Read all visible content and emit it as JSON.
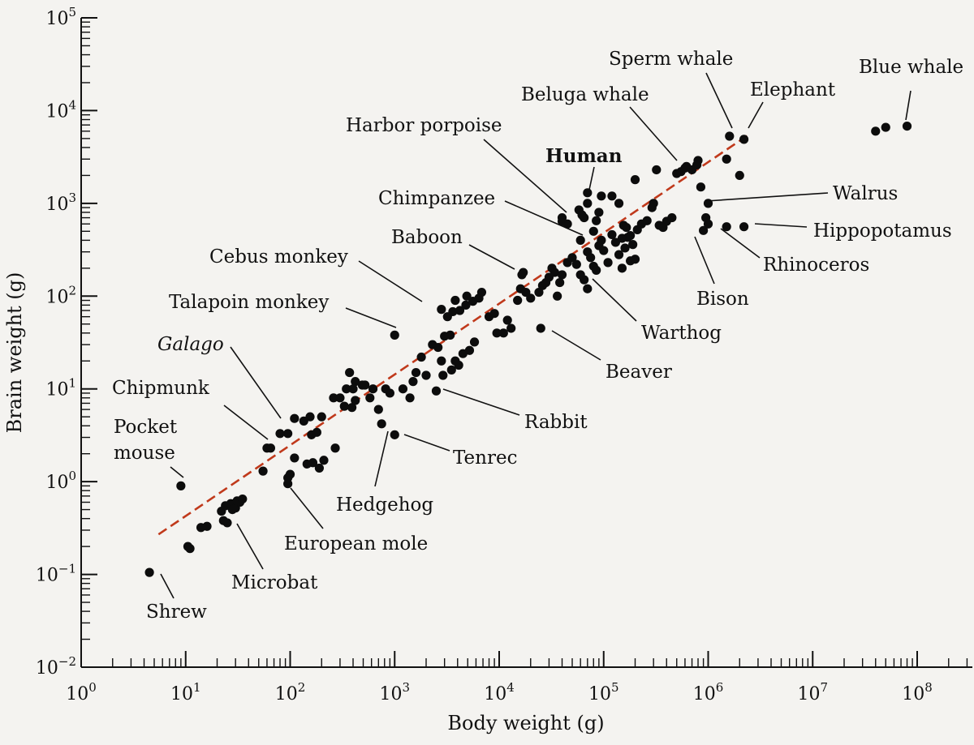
{
  "chart_data": {
    "type": "scatter",
    "title": "",
    "xlabel": "Body weight (g)",
    "ylabel": "Brain weight (g)",
    "x_scale": "log",
    "y_scale": "log",
    "xlim": [
      1,
      100000000
    ],
    "ylim": [
      0.01,
      100000
    ],
    "x_ticks": [
      {
        "base": "10",
        "exp": "0",
        "value": 1
      },
      {
        "base": "10",
        "exp": "1",
        "value": 10
      },
      {
        "base": "10",
        "exp": "2",
        "value": 100
      },
      {
        "base": "10",
        "exp": "3",
        "value": 1000
      },
      {
        "base": "10",
        "exp": "4",
        "value": 10000
      },
      {
        "base": "10",
        "exp": "5",
        "value": 100000
      },
      {
        "base": "10",
        "exp": "6",
        "value": 1000000
      },
      {
        "base": "10",
        "exp": "7",
        "value": 10000000
      },
      {
        "base": "10",
        "exp": "8",
        "value": 100000000
      }
    ],
    "y_ticks": [
      {
        "base": "10",
        "exp": "−2",
        "value": 0.01
      },
      {
        "base": "10",
        "exp": "−1",
        "value": 0.1
      },
      {
        "base": "10",
        "exp": "0",
        "value": 1
      },
      {
        "base": "10",
        "exp": "1",
        "value": 10
      },
      {
        "base": "10",
        "exp": "2",
        "value": 100
      },
      {
        "base": "10",
        "exp": "3",
        "value": 1000
      },
      {
        "base": "10",
        "exp": "4",
        "value": 10000
      },
      {
        "base": "10",
        "exp": "5",
        "value": 100000
      }
    ],
    "fit_line": {
      "color": "#c0391b",
      "style": "dashed",
      "x": [
        5.5,
        2500000
      ],
      "y": [
        0.27,
        5600
      ]
    },
    "labeled_points": [
      {
        "name": "Shrew",
        "x": 4.5,
        "y": 0.105
      },
      {
        "name": "Pocket mouse",
        "x": 9,
        "y": 0.9
      },
      {
        "name": "Microbat",
        "x": 23,
        "y": 0.38
      },
      {
        "name": "European mole",
        "x": 95,
        "y": 0.95
      },
      {
        "name": "Chipmunk",
        "x": 60,
        "y": 2.3
      },
      {
        "name": "Galago",
        "x": 95,
        "y": 3.3,
        "italic": true
      },
      {
        "name": "Hedgehog",
        "x": 750,
        "y": 4.2
      },
      {
        "name": "Tenrec",
        "x": 1000,
        "y": 3.2
      },
      {
        "name": "Talapoin monkey",
        "x": 1000,
        "y": 38
      },
      {
        "name": "Cebus monkey",
        "x": 2800,
        "y": 72
      },
      {
        "name": "Rabbit",
        "x": 2500,
        "y": 9.5
      },
      {
        "name": "Baboon",
        "x": 17000,
        "y": 180
      },
      {
        "name": "Beaver",
        "x": 25000,
        "y": 45
      },
      {
        "name": "Chimpanzee",
        "x": 60000,
        "y": 400
      },
      {
        "name": "Harbor porpoise",
        "x": 40000,
        "y": 700
      },
      {
        "name": "Human",
        "x": 70000,
        "y": 1300,
        "bold": true
      },
      {
        "name": "Warthog",
        "x": 70000,
        "y": 120
      },
      {
        "name": "Beluga whale",
        "x": 600000,
        "y": 2400
      },
      {
        "name": "Sperm whale",
        "x": 1600000,
        "y": 5300
      },
      {
        "name": "Elephant",
        "x": 2200000,
        "y": 4900
      },
      {
        "name": "Blue whale",
        "x": 80000000,
        "y": 6800
      },
      {
        "name": "Walrus",
        "x": 1000000,
        "y": 1000
      },
      {
        "name": "Hippopotamus",
        "x": 2200000,
        "y": 560
      },
      {
        "name": "Rhinoceros",
        "x": 1500000,
        "y": 560
      },
      {
        "name": "Bison",
        "x": 900000,
        "y": 510
      }
    ],
    "other_points": [
      [
        11,
        0.19
      ],
      [
        10.5,
        0.2
      ],
      [
        14,
        0.32
      ],
      [
        16,
        0.33
      ],
      [
        22,
        0.48
      ],
      [
        24,
        0.55
      ],
      [
        27,
        0.58
      ],
      [
        30,
        0.52
      ],
      [
        33,
        0.6
      ],
      [
        31,
        0.62
      ],
      [
        28,
        0.5
      ],
      [
        35,
        0.65
      ],
      [
        25,
        0.36
      ],
      [
        55,
        1.3
      ],
      [
        65,
        2.3
      ],
      [
        80,
        3.3
      ],
      [
        100,
        1.2
      ],
      [
        110,
        1.8
      ],
      [
        95,
        1.1
      ],
      [
        110,
        4.8
      ],
      [
        135,
        4.5
      ],
      [
        155,
        5.0
      ],
      [
        160,
        3.2
      ],
      [
        180,
        3.4
      ],
      [
        165,
        1.6
      ],
      [
        190,
        1.4
      ],
      [
        210,
        1.7
      ],
      [
        145,
        1.55
      ],
      [
        200,
        5.0
      ],
      [
        260,
        8.0
      ],
      [
        300,
        8.0
      ],
      [
        330,
        6.5
      ],
      [
        390,
        6.3
      ],
      [
        270,
        2.3
      ],
      [
        420,
        7.5
      ],
      [
        370,
        15
      ],
      [
        420,
        12
      ],
      [
        490,
        11
      ],
      [
        345,
        10
      ],
      [
        400,
        10
      ],
      [
        520,
        11
      ],
      [
        580,
        8
      ],
      [
        620,
        10
      ],
      [
        700,
        6
      ],
      [
        900,
        9
      ],
      [
        820,
        10
      ],
      [
        1200,
        10
      ],
      [
        1400,
        8
      ],
      [
        1500,
        12
      ],
      [
        1600,
        15
      ],
      [
        1800,
        22
      ],
      [
        2000,
        14
      ],
      [
        2300,
        30
      ],
      [
        2600,
        28
      ],
      [
        3000,
        37
      ],
      [
        3400,
        38
      ],
      [
        2800,
        20
      ],
      [
        3500,
        16
      ],
      [
        3800,
        20
      ],
      [
        2900,
        14
      ],
      [
        4500,
        24
      ],
      [
        5200,
        26
      ],
      [
        5800,
        32
      ],
      [
        4100,
        18
      ],
      [
        3200,
        60
      ],
      [
        3600,
        68
      ],
      [
        4200,
        70
      ],
      [
        4800,
        80
      ],
      [
        5600,
        88
      ],
      [
        6400,
        95
      ],
      [
        6800,
        110
      ],
      [
        4900,
        100
      ],
      [
        3800,
        90
      ],
      [
        8000,
        60
      ],
      [
        9000,
        65
      ],
      [
        9500,
        40
      ],
      [
        11000,
        40
      ],
      [
        12000,
        55
      ],
      [
        13000,
        45
      ],
      [
        15000,
        90
      ],
      [
        16000,
        120
      ],
      [
        18000,
        110
      ],
      [
        16500,
        170
      ],
      [
        20000,
        95
      ],
      [
        24000,
        110
      ],
      [
        26000,
        130
      ],
      [
        28000,
        140
      ],
      [
        30000,
        160
      ],
      [
        32000,
        200
      ],
      [
        34000,
        180
      ],
      [
        36000,
        100
      ],
      [
        38000,
        140
      ],
      [
        40000,
        170
      ],
      [
        45000,
        230
      ],
      [
        50000,
        260
      ],
      [
        55000,
        220
      ],
      [
        60000,
        170
      ],
      [
        65000,
        150
      ],
      [
        70000,
        300
      ],
      [
        75000,
        260
      ],
      [
        80000,
        210
      ],
      [
        85000,
        190
      ],
      [
        90000,
        350
      ],
      [
        95000,
        400
      ],
      [
        100000,
        310
      ],
      [
        110000,
        230
      ],
      [
        120000,
        460
      ],
      [
        130000,
        380
      ],
      [
        140000,
        280
      ],
      [
        150000,
        200
      ],
      [
        160000,
        330
      ],
      [
        170000,
        430
      ],
      [
        180000,
        240
      ],
      [
        190000,
        360
      ],
      [
        200000,
        250
      ],
      [
        210000,
        520
      ],
      [
        40000,
        640
      ],
      [
        45000,
        600
      ],
      [
        58000,
        850
      ],
      [
        62000,
        750
      ],
      [
        65000,
        700
      ],
      [
        70000,
        1000
      ],
      [
        80000,
        500
      ],
      [
        85000,
        650
      ],
      [
        90000,
        800
      ],
      [
        95000,
        1200
      ],
      [
        120000,
        1200
      ],
      [
        140000,
        1000
      ],
      [
        150000,
        420
      ],
      [
        155000,
        580
      ],
      [
        165000,
        550
      ],
      [
        180000,
        450
      ],
      [
        200000,
        1800
      ],
      [
        230000,
        600
      ],
      [
        260000,
        650
      ],
      [
        290000,
        900
      ],
      [
        300000,
        1000
      ],
      [
        320000,
        2300
      ],
      [
        340000,
        580
      ],
      [
        370000,
        550
      ],
      [
        400000,
        640
      ],
      [
        450000,
        700
      ],
      [
        500000,
        2100
      ],
      [
        550000,
        2200
      ],
      [
        620000,
        2500
      ],
      [
        700000,
        2300
      ],
      [
        800000,
        2900
      ],
      [
        850000,
        1500
      ],
      [
        950000,
        700
      ],
      [
        1000000,
        600
      ],
      [
        780000,
        2600
      ],
      [
        1500000,
        3000
      ],
      [
        2000000,
        2000
      ],
      [
        40000000,
        6000
      ],
      [
        50000000,
        6600
      ]
    ]
  }
}
